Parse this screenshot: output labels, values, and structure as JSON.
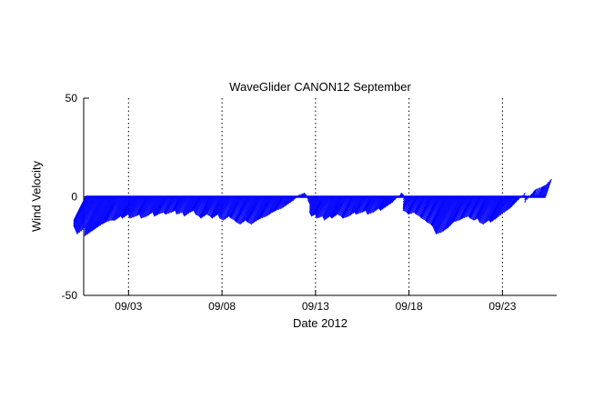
{
  "chart_data": {
    "type": "feather-stick",
    "title": "WaveGlider CANON12 September",
    "xlabel": "Date 2012",
    "ylabel": "Wind Velocity",
    "xlim_days": [
      0.6,
      25.9
    ],
    "ylim": [
      -50,
      50
    ],
    "xtick_days": [
      3,
      8,
      13,
      18,
      23
    ],
    "xtick_labels": [
      "09/03",
      "09/08",
      "09/13",
      "09/18",
      "09/23"
    ],
    "ytick_values": [
      50,
      0,
      -50
    ],
    "ytick_labels": [
      "50",
      "0",
      "-50"
    ],
    "grid": "vertical-dotted",
    "legend": "none",
    "stick_color": "#0000ff",
    "axis_color": "#000000",
    "background_color": "#ffffff",
    "baseline_v": 0,
    "vectors_tuv": [
      [
        0.7,
        -6,
        -12
      ],
      [
        0.9,
        -8,
        -15
      ],
      [
        1.1,
        -9,
        -17
      ],
      [
        1.3,
        -10,
        -19
      ],
      [
        1.5,
        -8,
        -16
      ],
      [
        1.7,
        -10,
        -20
      ],
      [
        1.9,
        -9,
        -18
      ],
      [
        2.1,
        -8,
        -16
      ],
      [
        2.3,
        -7,
        -14
      ],
      [
        2.5,
        -7,
        -13
      ],
      [
        2.7,
        -6,
        -12
      ],
      [
        2.9,
        -6,
        -12
      ],
      [
        3.1,
        -5,
        -10
      ],
      [
        3.3,
        -6,
        -11
      ],
      [
        3.5,
        -5,
        -9
      ],
      [
        3.7,
        -6,
        -11
      ],
      [
        3.9,
        -5,
        -10
      ],
      [
        4.1,
        -5,
        -9
      ],
      [
        4.3,
        -6,
        -11
      ],
      [
        4.5,
        -5,
        -10
      ],
      [
        4.7,
        -4,
        -8
      ],
      [
        4.9,
        -5,
        -10
      ],
      [
        5.1,
        -5,
        -9
      ],
      [
        5.3,
        -4,
        -8
      ],
      [
        5.5,
        -5,
        -9
      ],
      [
        5.7,
        -4,
        -8
      ],
      [
        5.9,
        -4,
        -7
      ],
      [
        6.1,
        -5,
        -9
      ],
      [
        6.3,
        -4,
        -8
      ],
      [
        6.5,
        -5,
        -10
      ],
      [
        6.7,
        -4,
        -8
      ],
      [
        6.9,
        -4,
        -7
      ],
      [
        7.1,
        -5,
        -9
      ],
      [
        7.3,
        -5,
        -10
      ],
      [
        7.5,
        -6,
        -11
      ],
      [
        7.7,
        -5,
        -9
      ],
      [
        7.9,
        -5,
        -10
      ],
      [
        8.1,
        -6,
        -11
      ],
      [
        8.3,
        -5,
        -9
      ],
      [
        8.5,
        -6,
        -11
      ],
      [
        8.7,
        -6,
        -12
      ],
      [
        8.9,
        -5,
        -10
      ],
      [
        9.1,
        -6,
        -11
      ],
      [
        9.3,
        -6,
        -12
      ],
      [
        9.5,
        -7,
        -13
      ],
      [
        9.7,
        -7,
        -14
      ],
      [
        9.9,
        -6,
        -12
      ],
      [
        10.1,
        -7,
        -13
      ],
      [
        10.3,
        -7,
        -14
      ],
      [
        10.5,
        -6,
        -12
      ],
      [
        10.7,
        -6,
        -11
      ],
      [
        10.9,
        -5,
        -10
      ],
      [
        11.1,
        -4,
        -8
      ],
      [
        11.3,
        -4,
        -7
      ],
      [
        11.5,
        -3,
        -6
      ],
      [
        11.7,
        -2,
        -4
      ],
      [
        11.9,
        -1,
        -2
      ],
      [
        12.1,
        0,
        1
      ],
      [
        12.3,
        1,
        2
      ],
      [
        12.5,
        0,
        1
      ],
      [
        12.7,
        -1,
        -2
      ],
      [
        12.9,
        -2,
        -4
      ],
      [
        13.1,
        -4,
        -8
      ],
      [
        13.3,
        -5,
        -10
      ],
      [
        13.5,
        -5,
        -9
      ],
      [
        13.7,
        -6,
        -11
      ],
      [
        13.9,
        -5,
        -10
      ],
      [
        14.1,
        -6,
        -12
      ],
      [
        14.3,
        -5,
        -10
      ],
      [
        14.5,
        -6,
        -11
      ],
      [
        14.7,
        -5,
        -9
      ],
      [
        14.9,
        -5,
        -10
      ],
      [
        15.1,
        -6,
        -11
      ],
      [
        15.3,
        -5,
        -10
      ],
      [
        15.5,
        -4,
        -8
      ],
      [
        15.7,
        -5,
        -9
      ],
      [
        15.9,
        -4,
        -8
      ],
      [
        16.1,
        -4,
        -7
      ],
      [
        16.3,
        -5,
        -9
      ],
      [
        16.5,
        -4,
        -8
      ],
      [
        16.7,
        -3,
        -6
      ],
      [
        16.9,
        -4,
        -7
      ],
      [
        17.1,
        -3,
        -5
      ],
      [
        17.3,
        -2,
        -3
      ],
      [
        17.5,
        1,
        2
      ],
      [
        17.7,
        0,
        1
      ],
      [
        17.9,
        -2,
        -4
      ],
      [
        18.1,
        -4,
        -7
      ],
      [
        18.3,
        -4,
        -8
      ],
      [
        18.5,
        -5,
        -9
      ],
      [
        18.7,
        -4,
        -8
      ],
      [
        18.9,
        -5,
        -9
      ],
      [
        19.1,
        -5,
        -10
      ],
      [
        19.3,
        -6,
        -11
      ],
      [
        19.5,
        -6,
        -12
      ],
      [
        19.7,
        -7,
        -13
      ],
      [
        19.9,
        -7,
        -14
      ],
      [
        20.1,
        -8,
        -15
      ],
      [
        20.3,
        -9,
        -17
      ],
      [
        20.5,
        -10,
        -19
      ],
      [
        20.7,
        -9,
        -18
      ],
      [
        20.9,
        -8,
        -16
      ],
      [
        21.1,
        -7,
        -13
      ],
      [
        21.3,
        -6,
        -12
      ],
      [
        21.5,
        -6,
        -11
      ],
      [
        21.7,
        -5,
        -10
      ],
      [
        21.9,
        -6,
        -11
      ],
      [
        22.1,
        -6,
        -12
      ],
      [
        22.3,
        -6,
        -11
      ],
      [
        22.5,
        -7,
        -13
      ],
      [
        22.7,
        -7,
        -14
      ],
      [
        22.9,
        -6,
        -12
      ],
      [
        23.1,
        -7,
        -13
      ],
      [
        23.3,
        -6,
        -11
      ],
      [
        23.5,
        -4,
        -8
      ],
      [
        23.7,
        -3,
        -6
      ],
      [
        23.9,
        -2,
        -3
      ],
      [
        24.1,
        1,
        2
      ],
      [
        24.3,
        -1,
        -3
      ],
      [
        24.5,
        2,
        3
      ],
      [
        24.7,
        1,
        4
      ],
      [
        24.9,
        2,
        5
      ],
      [
        25.1,
        2,
        6
      ],
      [
        25.3,
        3,
        9
      ]
    ]
  }
}
